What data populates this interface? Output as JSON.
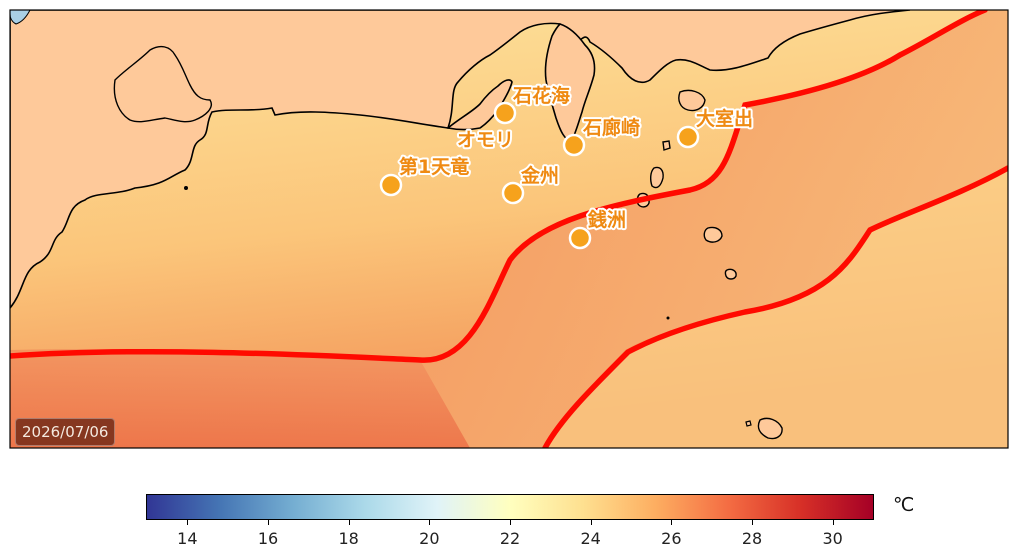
{
  "map": {
    "date": "2026/07/06",
    "stations": [
      {
        "id": "ishikakai",
        "name": "石花海",
        "lon": 0.36,
        "lat": 0.76
      },
      {
        "id": "omori",
        "name": "オモリ",
        "lon": 0.36,
        "lat": 0.76
      },
      {
        "id": "sekirozaki",
        "name": "石廊崎",
        "lon": 0.57,
        "lat": 0.69
      },
      {
        "id": "daiichitenryu",
        "name": "第1天竜",
        "lon": 0.16,
        "lat": 0.62
      },
      {
        "id": "kinshu",
        "name": "金州",
        "lon": 0.37,
        "lat": 0.58
      },
      {
        "id": "zenisu",
        "name": "銭洲",
        "lon": 0.52,
        "lat": 0.45
      },
      {
        "id": "omurode",
        "name": "大室出",
        "lon": 0.74,
        "lat": 0.74
      }
    ],
    "colors": {
      "marker": "#f6a21c",
      "label": "#ef8a12",
      "front_line": "#ff0a00",
      "land": "#fec99a"
    }
  },
  "colorbar": {
    "unit": "℃",
    "min": 13,
    "max": 31,
    "ticks": [
      "14",
      "16",
      "18",
      "20",
      "22",
      "24",
      "26",
      "28",
      "30"
    ],
    "colormap": "RdYlBu_r"
  }
}
